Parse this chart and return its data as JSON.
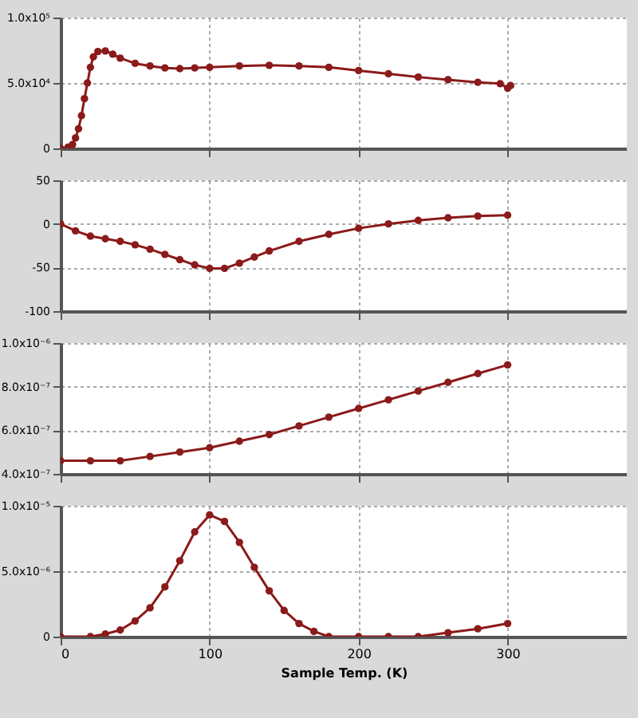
{
  "chart_data": [
    {
      "type": "line",
      "xlim": [
        0,
        380
      ],
      "xticks": [
        0,
        100,
        200,
        300
      ],
      "ylim": [
        0,
        100000
      ],
      "yticks": [
        0,
        {
          "value": 50000,
          "label": "5.0x10⁴"
        },
        {
          "value": 100000,
          "label": "1.0x10⁵"
        }
      ],
      "grid": true,
      "marker": "circle",
      "tick_labels": "y",
      "x": [
        0,
        5,
        8,
        10,
        12,
        14,
        16,
        18,
        20,
        22,
        25,
        30,
        35,
        40,
        50,
        60,
        70,
        80,
        90,
        100,
        120,
        140,
        160,
        180,
        200,
        220,
        240,
        260,
        280,
        295,
        300,
        302
      ],
      "series": [
        {
          "color": "#8b1a1a",
          "values": [
            0,
            1000,
            3000,
            8000,
            15000,
            25000,
            38000,
            50000,
            62000,
            70000,
            74000,
            74500,
            72000,
            69000,
            65000,
            63000,
            61500,
            61000,
            61500,
            62000,
            63000,
            63500,
            63000,
            62000,
            59500,
            57000,
            54500,
            52500,
            50500,
            49500,
            46000,
            48000
          ]
        }
      ]
    },
    {
      "type": "line",
      "xlim": [
        0,
        380
      ],
      "xticks": [
        0,
        100,
        200,
        300
      ],
      "ylim": [
        -100,
        50
      ],
      "yticks": [
        -100,
        -50,
        0,
        50
      ],
      "grid": true,
      "marker": "circle",
      "tick_labels": "y",
      "x": [
        0,
        10,
        20,
        30,
        40,
        50,
        60,
        70,
        80,
        90,
        100,
        110,
        120,
        130,
        140,
        160,
        180,
        200,
        220,
        240,
        260,
        280,
        300
      ],
      "series": [
        {
          "color": "#8b1a1a",
          "values": [
            0,
            -8,
            -14,
            -17,
            -20,
            -24,
            -29,
            -35,
            -41,
            -47,
            -51,
            -51,
            -45,
            -38,
            -31,
            -20,
            -12,
            -5,
            0,
            4,
            7,
            9,
            10
          ]
        }
      ]
    },
    {
      "type": "line",
      "xlim": [
        0,
        380
      ],
      "xticks": [
        0,
        100,
        200,
        300
      ],
      "ylim": [
        4e-07,
        1e-06
      ],
      "yticks": [
        {
          "value": 4e-07,
          "label": "4.0x10⁻⁷"
        },
        {
          "value": 6e-07,
          "label": "6.0x10⁻⁷"
        },
        {
          "value": 8e-07,
          "label": "8.0x10⁻⁷"
        },
        {
          "value": 1e-06,
          "label": "1.0x10⁻⁶"
        }
      ],
      "grid": true,
      "marker": "circle",
      "tick_labels": "y",
      "x": [
        0,
        20,
        40,
        60,
        80,
        100,
        120,
        140,
        160,
        180,
        200,
        220,
        240,
        260,
        280,
        300
      ],
      "series": [
        {
          "color": "#8b1a1a",
          "values": [
            4.6e-07,
            4.6e-07,
            4.6e-07,
            4.8e-07,
            5e-07,
            5.2e-07,
            5.5e-07,
            5.8e-07,
            6.2e-07,
            6.6e-07,
            7e-07,
            7.4e-07,
            7.8e-07,
            8.2e-07,
            8.6e-07,
            9e-07
          ]
        }
      ]
    },
    {
      "type": "line",
      "xlim": [
        0,
        380
      ],
      "xticks": [
        0,
        100,
        200,
        300
      ],
      "ylim": [
        0,
        1e-05
      ],
      "yticks": [
        0,
        {
          "value": 5e-06,
          "label": "5.0x10⁻⁶"
        },
        {
          "value": 1e-05,
          "label": "1.0x10⁻⁵"
        }
      ],
      "grid": true,
      "marker": "circle",
      "xlabel": "Sample Temp. (K)",
      "x": [
        0,
        20,
        30,
        40,
        50,
        60,
        70,
        80,
        90,
        100,
        110,
        120,
        130,
        140,
        150,
        160,
        170,
        180,
        200,
        220,
        240,
        260,
        280,
        300
      ],
      "series": [
        {
          "color": "#8b1a1a",
          "values": [
            0,
            0,
            2e-07,
            5e-07,
            1.2e-06,
            2.2e-06,
            3.8e-06,
            5.8e-06,
            8e-06,
            9.3e-06,
            8.8e-06,
            7.2e-06,
            5.3e-06,
            3.5e-06,
            2e-06,
            1e-06,
            4e-07,
            0,
            0,
            0,
            0,
            3e-07,
            6e-07,
            1e-06
          ]
        }
      ]
    }
  ]
}
